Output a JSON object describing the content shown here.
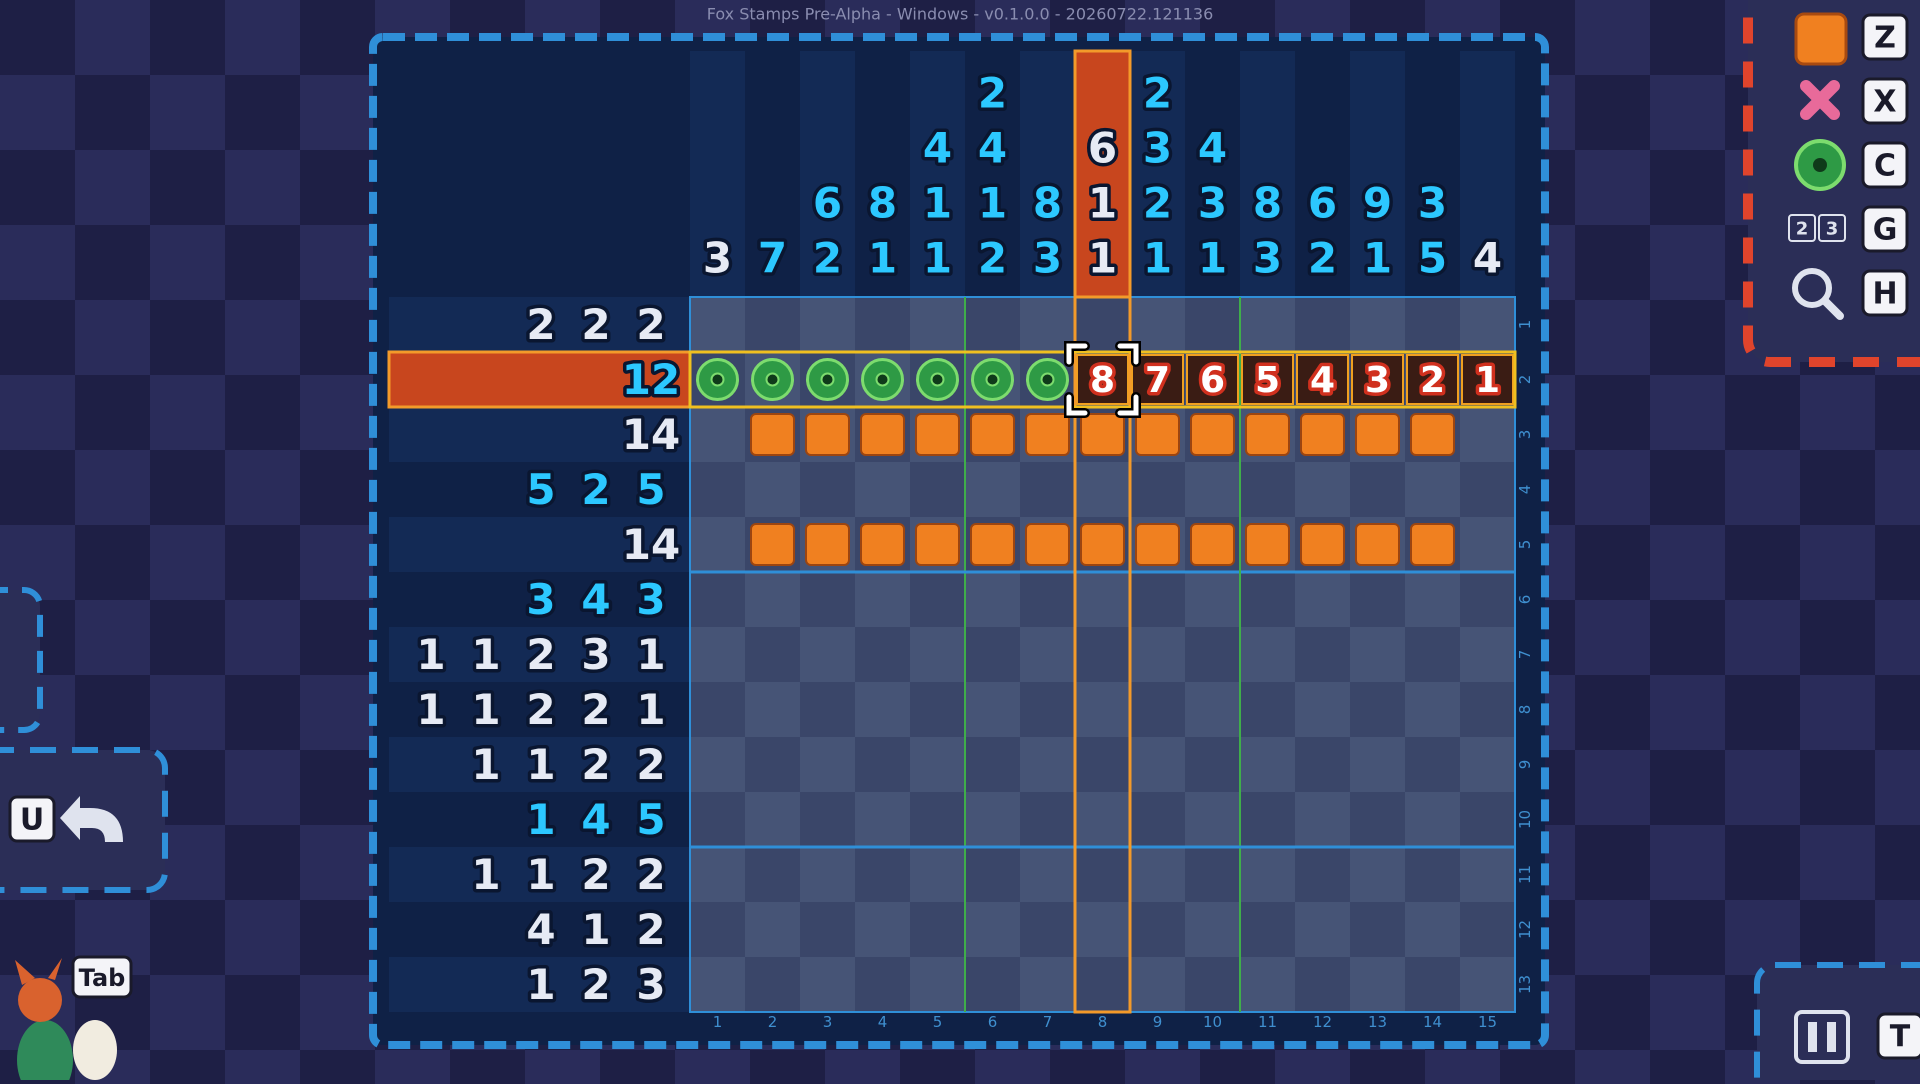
{
  "title": "Fox Stamps Pre-Alpha  - Windows - v0.1.0.0 - 20260722.121136",
  "puzzle": {
    "column_clues": [
      [
        3
      ],
      [
        7
      ],
      [
        6,
        2
      ],
      [
        8,
        1
      ],
      [
        4,
        1,
        1
      ],
      [
        2,
        4,
        1,
        2
      ],
      [
        8,
        3
      ],
      [
        6,
        1,
        1
      ],
      [
        2,
        3,
        2,
        1
      ],
      [
        4,
        3,
        1
      ],
      [
        8,
        3
      ],
      [
        6,
        2
      ],
      [
        9,
        1
      ],
      [
        3,
        5
      ],
      [
        4
      ]
    ],
    "column_clue_colors": [
      "white",
      "cyan",
      "cyan",
      "cyan",
      "cyan",
      "cyan",
      "cyan",
      "white",
      "cyan",
      "cyan",
      "cyan",
      "cyan",
      "cyan",
      "cyan",
      "white"
    ],
    "row_clues": [
      [
        2,
        2,
        2
      ],
      [
        12
      ],
      [
        14
      ],
      [
        5,
        2,
        5
      ],
      [
        14
      ],
      [
        3,
        4,
        3
      ],
      [
        1,
        1,
        2,
        3,
        1
      ],
      [
        1,
        1,
        2,
        2,
        1
      ],
      [
        1,
        1,
        2,
        2
      ],
      [
        1,
        4,
        5
      ],
      [
        1,
        1,
        2,
        2
      ],
      [
        4,
        1,
        2
      ],
      [
        1,
        2,
        3
      ]
    ],
    "row_clue_colors": [
      "white",
      "cyan",
      "white",
      "cyan",
      "white",
      "cyan",
      "white",
      "white",
      "white",
      "cyan",
      "white",
      "white",
      "white"
    ],
    "column_numbers": [
      1,
      2,
      3,
      4,
      5,
      6,
      7,
      8,
      9,
      10,
      11,
      12,
      13,
      14,
      15
    ],
    "row_numbers": [
      1,
      2,
      3,
      4,
      5,
      6,
      7,
      8,
      9,
      10,
      11,
      12,
      13
    ],
    "cells": {
      "2": [
        "dot",
        "dot",
        "dot",
        "dot",
        "dot",
        "dot",
        "dot",
        8,
        7,
        6,
        5,
        4,
        3,
        2,
        1
      ],
      "3": [
        "empty",
        "fill",
        "fill",
        "fill",
        "fill",
        "fill",
        "fill",
        "fill",
        "fill",
        "fill",
        "fill",
        "fill",
        "fill",
        "fill",
        "empty"
      ],
      "5": [
        "empty",
        "fill",
        "fill",
        "fill",
        "fill",
        "fill",
        "fill",
        "fill",
        "fill",
        "fill",
        "fill",
        "fill",
        "fill",
        "fill",
        "empty"
      ]
    }
  },
  "tools": {
    "keys": [
      "Z",
      "X",
      "C",
      "G",
      "H"
    ],
    "count_digits": [
      2,
      3
    ]
  },
  "undo_key": "U",
  "tab_key": "Tab",
  "pause_key": "T"
}
